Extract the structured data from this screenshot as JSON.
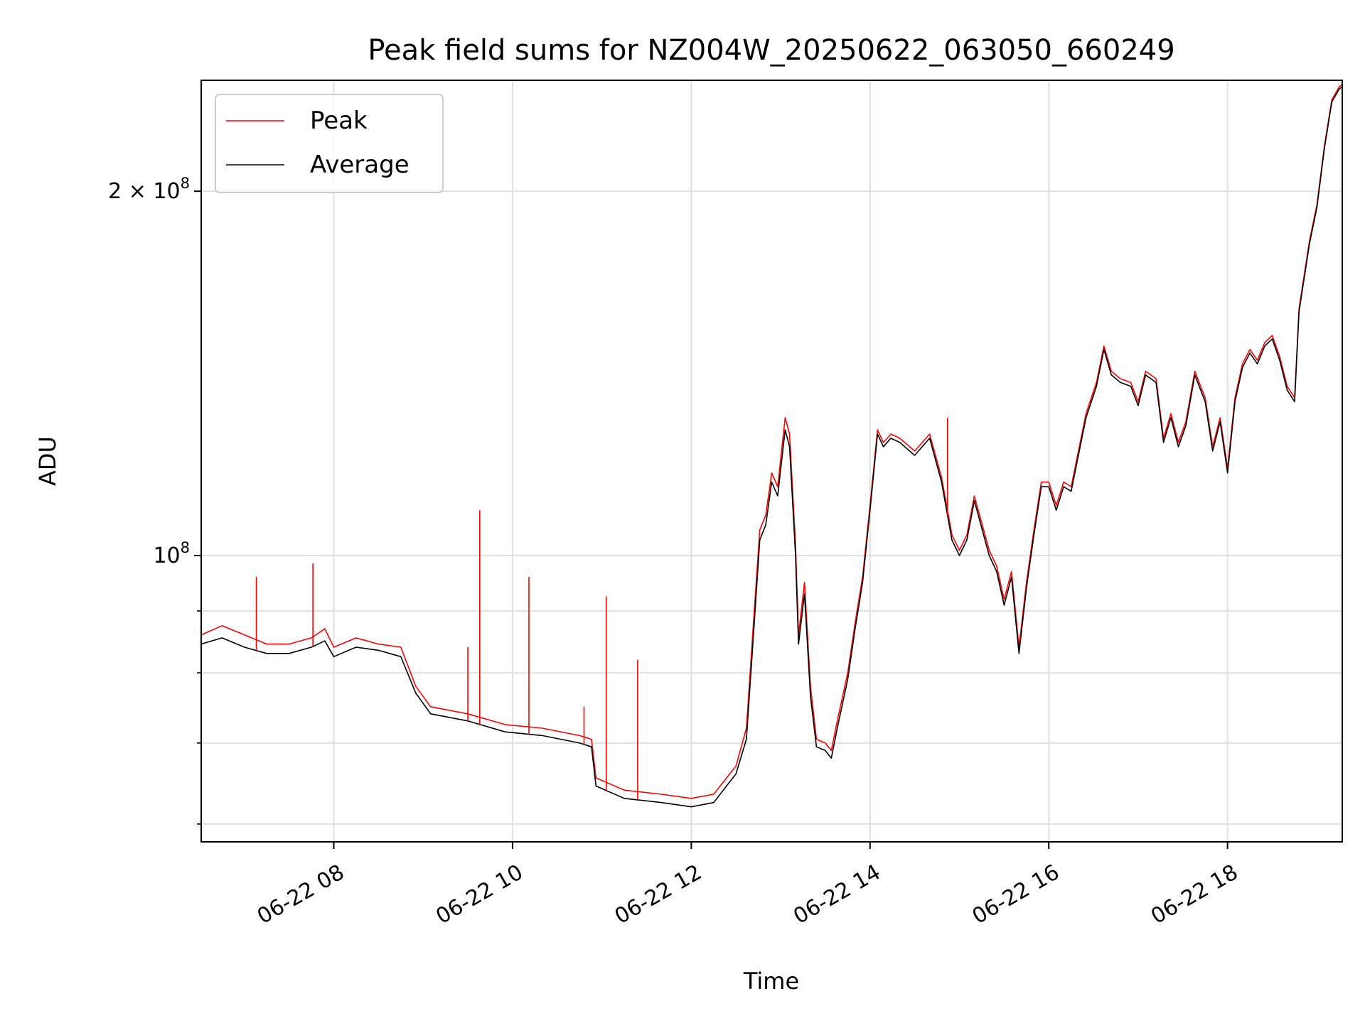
{
  "chart_data": {
    "type": "line",
    "title": "Peak field sums for NZ004W_20250622_063050_660249",
    "xlabel": "Time",
    "ylabel": "ADU",
    "yscale": "log",
    "xlim": [
      "2025-06-22 06:31",
      "2025-06-22 19:17"
    ],
    "ylim": [
      58000000,
      247000000
    ],
    "grid": true,
    "legend_position": "upper-left",
    "x_ticks": [
      {
        "value": "2025-06-22 08:00",
        "label": "06-22 08"
      },
      {
        "value": "2025-06-22 10:00",
        "label": "06-22 10"
      },
      {
        "value": "2025-06-22 12:00",
        "label": "06-22 12"
      },
      {
        "value": "2025-06-22 14:00",
        "label": "06-22 14"
      },
      {
        "value": "2025-06-22 16:00",
        "label": "06-22 16"
      },
      {
        "value": "2025-06-22 18:00",
        "label": "06-22 18"
      }
    ],
    "y_ticks": [
      {
        "value": 100000000,
        "label_base": "10",
        "label_exp": "8"
      },
      {
        "value": 200000000,
        "label_base": "2 × 10",
        "label_exp": "8"
      }
    ],
    "y_minor_ticks": [
      60000000,
      70000000,
      80000000,
      90000000
    ],
    "series": [
      {
        "name": "Peak",
        "color": "#ff0000",
        "x": [
          "2025-06-22 06:31",
          "2025-06-22 06:45",
          "2025-06-22 07:00",
          "2025-06-22 07:15",
          "2025-06-22 07:30",
          "2025-06-22 07:45",
          "2025-06-22 07:54",
          "2025-06-22 08:00",
          "2025-06-22 08:15",
          "2025-06-22 08:30",
          "2025-06-22 08:45",
          "2025-06-22 08:55",
          "2025-06-22 09:05",
          "2025-06-22 09:30",
          "2025-06-22 09:55",
          "2025-06-22 10:20",
          "2025-06-22 10:45",
          "2025-06-22 10:53",
          "2025-06-22 10:56",
          "2025-06-22 11:15",
          "2025-06-22 11:40",
          "2025-06-22 12:00",
          "2025-06-22 12:15",
          "2025-06-22 12:30",
          "2025-06-22 12:37",
          "2025-06-22 12:42",
          "2025-06-22 12:46",
          "2025-06-22 12:50",
          "2025-06-22 12:54",
          "2025-06-22 12:58",
          "2025-06-22 13:03",
          "2025-06-22 13:06",
          "2025-06-22 13:10",
          "2025-06-22 13:12",
          "2025-06-22 13:16",
          "2025-06-22 13:20",
          "2025-06-22 13:24",
          "2025-06-22 13:30",
          "2025-06-22 13:34",
          "2025-06-22 13:38",
          "2025-06-22 13:45",
          "2025-06-22 13:50",
          "2025-06-22 13:55",
          "2025-06-22 14:00",
          "2025-06-22 14:05",
          "2025-06-22 14:09",
          "2025-06-22 14:14",
          "2025-06-22 14:20",
          "2025-06-22 14:30",
          "2025-06-22 14:40",
          "2025-06-22 14:48",
          "2025-06-22 14:55",
          "2025-06-22 15:00",
          "2025-06-22 15:05",
          "2025-06-22 15:10",
          "2025-06-22 15:20",
          "2025-06-22 15:25",
          "2025-06-22 15:30",
          "2025-06-22 15:35",
          "2025-06-22 15:40",
          "2025-06-22 15:45",
          "2025-06-22 15:50",
          "2025-06-22 15:55",
          "2025-06-22 16:00",
          "2025-06-22 16:05",
          "2025-06-22 16:10",
          "2025-06-22 16:15",
          "2025-06-22 16:25",
          "2025-06-22 16:32",
          "2025-06-22 16:37",
          "2025-06-22 16:42",
          "2025-06-22 16:48",
          "2025-06-22 16:55",
          "2025-06-22 17:00",
          "2025-06-22 17:05",
          "2025-06-22 17:12",
          "2025-06-22 17:17",
          "2025-06-22 17:22",
          "2025-06-22 17:27",
          "2025-06-22 17:32",
          "2025-06-22 17:38",
          "2025-06-22 17:45",
          "2025-06-22 17:50",
          "2025-06-22 17:55",
          "2025-06-22 18:00",
          "2025-06-22 18:05",
          "2025-06-22 18:10",
          "2025-06-22 18:15",
          "2025-06-22 18:20",
          "2025-06-22 18:25",
          "2025-06-22 18:30",
          "2025-06-22 18:35",
          "2025-06-22 18:40",
          "2025-06-22 18:45",
          "2025-06-22 18:48",
          "2025-06-22 18:55",
          "2025-06-22 19:00",
          "2025-06-22 19:05",
          "2025-06-22 19:10",
          "2025-06-22 19:15",
          "2025-06-22 19:17"
        ],
        "values": [
          86000000,
          87500000,
          86000000,
          84500000,
          84500000,
          85500000,
          87000000,
          84000000,
          85500000,
          84500000,
          84000000,
          78000000,
          75000000,
          74000000,
          72500000,
          72000000,
          71000000,
          70500000,
          65500000,
          64000000,
          63500000,
          63000000,
          63500000,
          67000000,
          72000000,
          89000000,
          105000000,
          108000000,
          117000000,
          114000000,
          130000000,
          126000000,
          102000000,
          86000000,
          95000000,
          78000000,
          70500000,
          70000000,
          69000000,
          73000000,
          80000000,
          88000000,
          96000000,
          110000000,
          127000000,
          124000000,
          126000000,
          125000000,
          122000000,
          126000000,
          116000000,
          104000000,
          101000000,
          104000000,
          112000000,
          101000000,
          98000000,
          92000000,
          97000000,
          84000000,
          95000000,
          105000000,
          115000000,
          115000000,
          110000000,
          115000000,
          114000000,
          131000000,
          139000000,
          149000000,
          142000000,
          140000000,
          139000000,
          134000000,
          142000000,
          140000000,
          125000000,
          131000000,
          124000000,
          129000000,
          142000000,
          135000000,
          123000000,
          130000000,
          118000000,
          135000000,
          144000000,
          148000000,
          145000000,
          150000000,
          152000000,
          146000000,
          138000000,
          135000000,
          160000000,
          182000000,
          195000000,
          218000000,
          238000000,
          244000000,
          245000000
        ]
      },
      {
        "name": "Average",
        "color": "#000000",
        "x": [
          "2025-06-22 06:31",
          "2025-06-22 06:45",
          "2025-06-22 07:00",
          "2025-06-22 07:15",
          "2025-06-22 07:30",
          "2025-06-22 07:45",
          "2025-06-22 07:54",
          "2025-06-22 08:00",
          "2025-06-22 08:15",
          "2025-06-22 08:30",
          "2025-06-22 08:45",
          "2025-06-22 08:55",
          "2025-06-22 09:05",
          "2025-06-22 09:30",
          "2025-06-22 09:55",
          "2025-06-22 10:20",
          "2025-06-22 10:45",
          "2025-06-22 10:53",
          "2025-06-22 10:56",
          "2025-06-22 11:15",
          "2025-06-22 11:40",
          "2025-06-22 12:00",
          "2025-06-22 12:15",
          "2025-06-22 12:30",
          "2025-06-22 12:37",
          "2025-06-22 12:42",
          "2025-06-22 12:46",
          "2025-06-22 12:50",
          "2025-06-22 12:54",
          "2025-06-22 12:58",
          "2025-06-22 13:03",
          "2025-06-22 13:06",
          "2025-06-22 13:10",
          "2025-06-22 13:12",
          "2025-06-22 13:16",
          "2025-06-22 13:20",
          "2025-06-22 13:24",
          "2025-06-22 13:30",
          "2025-06-22 13:34",
          "2025-06-22 13:38",
          "2025-06-22 13:45",
          "2025-06-22 13:50",
          "2025-06-22 13:55",
          "2025-06-22 14:00",
          "2025-06-22 14:05",
          "2025-06-22 14:09",
          "2025-06-22 14:14",
          "2025-06-22 14:20",
          "2025-06-22 14:30",
          "2025-06-22 14:40",
          "2025-06-22 14:48",
          "2025-06-22 14:55",
          "2025-06-22 15:00",
          "2025-06-22 15:05",
          "2025-06-22 15:10",
          "2025-06-22 15:20",
          "2025-06-22 15:25",
          "2025-06-22 15:30",
          "2025-06-22 15:35",
          "2025-06-22 15:40",
          "2025-06-22 15:45",
          "2025-06-22 15:50",
          "2025-06-22 15:55",
          "2025-06-22 16:00",
          "2025-06-22 16:05",
          "2025-06-22 16:10",
          "2025-06-22 16:15",
          "2025-06-22 16:25",
          "2025-06-22 16:32",
          "2025-06-22 16:37",
          "2025-06-22 16:42",
          "2025-06-22 16:48",
          "2025-06-22 16:55",
          "2025-06-22 17:00",
          "2025-06-22 17:05",
          "2025-06-22 17:12",
          "2025-06-22 17:17",
          "2025-06-22 17:22",
          "2025-06-22 17:27",
          "2025-06-22 17:32",
          "2025-06-22 17:38",
          "2025-06-22 17:45",
          "2025-06-22 17:50",
          "2025-06-22 17:55",
          "2025-06-22 18:00",
          "2025-06-22 18:05",
          "2025-06-22 18:10",
          "2025-06-22 18:15",
          "2025-06-22 18:20",
          "2025-06-22 18:25",
          "2025-06-22 18:30",
          "2025-06-22 18:35",
          "2025-06-22 18:40",
          "2025-06-22 18:45",
          "2025-06-22 18:48",
          "2025-06-22 18:55",
          "2025-06-22 19:00",
          "2025-06-22 19:05",
          "2025-06-22 19:10",
          "2025-06-22 19:15",
          "2025-06-22 19:17"
        ],
        "values": [
          84500000,
          85500000,
          84000000,
          83000000,
          83000000,
          84000000,
          85000000,
          82500000,
          84000000,
          83500000,
          82500000,
          77000000,
          74000000,
          73000000,
          71500000,
          71000000,
          70000000,
          69500000,
          64500000,
          63000000,
          62500000,
          62000000,
          62500000,
          66000000,
          70500000,
          87000000,
          103000000,
          106000000,
          115000000,
          112000000,
          127000000,
          123000000,
          100000000,
          84500000,
          93000000,
          76500000,
          69500000,
          69000000,
          68000000,
          72000000,
          79000000,
          87000000,
          95000000,
          109000000,
          126000000,
          123000000,
          125000000,
          124000000,
          121000000,
          125000000,
          115000000,
          103000000,
          100000000,
          103000000,
          111000000,
          100000000,
          97000000,
          91000000,
          96000000,
          83000000,
          94000000,
          104000000,
          114000000,
          114000000,
          109000000,
          114000000,
          113000000,
          130000000,
          138000000,
          148000000,
          141000000,
          139000000,
          138000000,
          133000000,
          141000000,
          139000000,
          124000000,
          130000000,
          123000000,
          128000000,
          141000000,
          134000000,
          122000000,
          129000000,
          117000000,
          134000000,
          143000000,
          147000000,
          144000000,
          149000000,
          151000000,
          145000000,
          137000000,
          134000000,
          159000000,
          181000000,
          194000000,
          217000000,
          237000000,
          243000000,
          244000000
        ]
      }
    ],
    "peak_spikes": [
      {
        "x": "2025-06-22 07:08",
        "value": 96000000
      },
      {
        "x": "2025-06-22 07:46",
        "value": 98500000
      },
      {
        "x": "2025-06-22 09:30",
        "value": 84000000
      },
      {
        "x": "2025-06-22 09:38",
        "value": 109000000
      },
      {
        "x": "2025-06-22 10:11",
        "value": 96000000
      },
      {
        "x": "2025-06-22 10:48",
        "value": 75000000
      },
      {
        "x": "2025-06-22 11:03",
        "value": 92500000
      },
      {
        "x": "2025-06-22 11:24",
        "value": 82000000
      },
      {
        "x": "2025-06-22 14:52",
        "value": 130000000
      }
    ]
  }
}
